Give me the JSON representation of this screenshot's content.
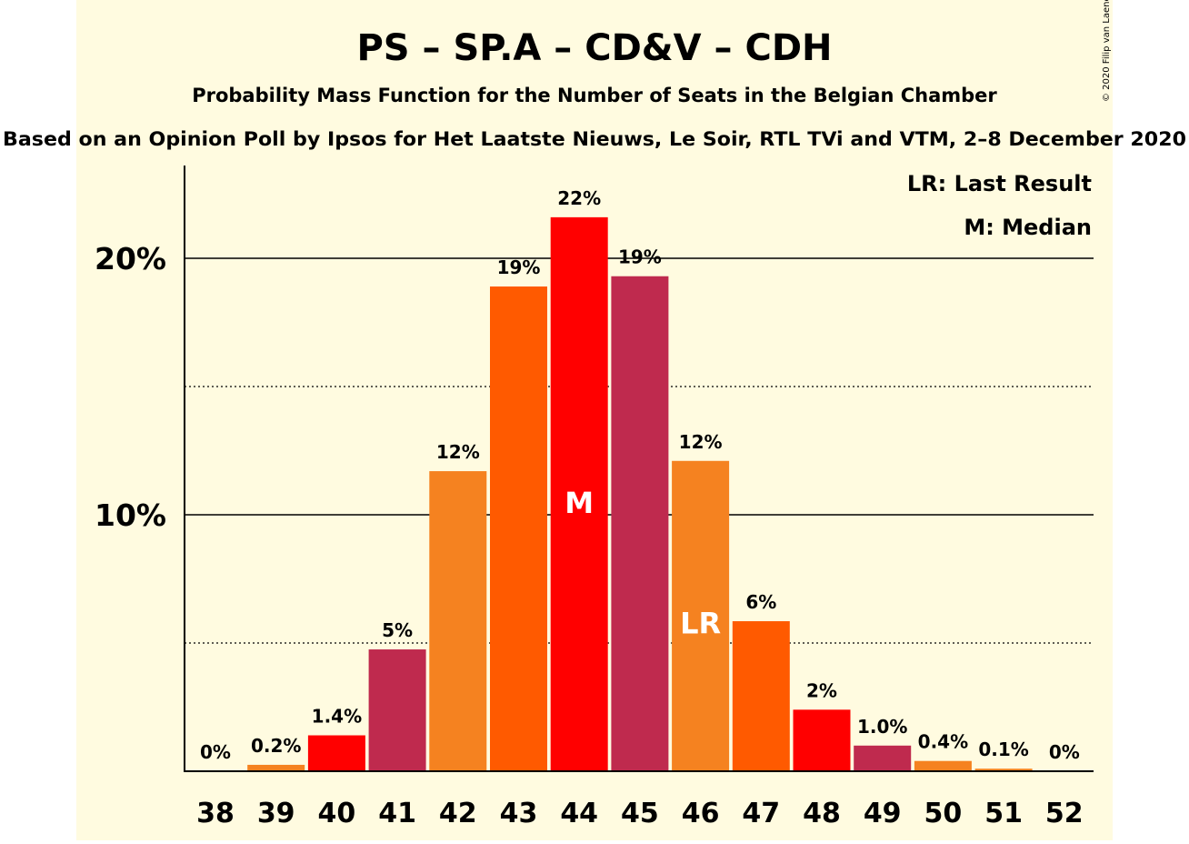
{
  "chart_data": {
    "type": "bar",
    "title": "PS – SP.A – CD&V – CDH",
    "subtitle": "Probability Mass Function for the Number of Seats in the Belgian Chamber",
    "source_line": "Based on an Opinion Poll by Ipsos for Het Laatste Nieuws, Le Soir, RTL TVi and VTM, 2–8 December 2020",
    "copyright": "© 2020 Filip van Laenen",
    "xlabel": "",
    "ylabel": "",
    "ylim": [
      0,
      23.5
    ],
    "y_ticks": [
      {
        "value": 10,
        "label": "10%"
      },
      {
        "value": 20,
        "label": "20%"
      }
    ],
    "minor_gridlines": [
      5,
      15
    ],
    "legend_placement": "top-right",
    "legend": [
      "LR: Last Result",
      "M: Median"
    ],
    "categories": [
      "38",
      "39",
      "40",
      "41",
      "42",
      "43",
      "44",
      "45",
      "46",
      "47",
      "48",
      "49",
      "50",
      "51",
      "52"
    ],
    "values": [
      0,
      0.25,
      1.4,
      4.75,
      11.7,
      18.9,
      21.6,
      19.3,
      12.1,
      5.85,
      2.4,
      1.0,
      0.4,
      0.1,
      0
    ],
    "data_labels": [
      "0%",
      "0.2%",
      "1.4%",
      "5%",
      "12%",
      "19%",
      "22%",
      "19%",
      "12%",
      "6%",
      "2%",
      "1.0%",
      "0.4%",
      "0.1%",
      "0%"
    ],
    "bar_colors": [
      "#F58220",
      "#F58220",
      "#FF0000",
      "#BF2A4E",
      "#F58220",
      "#FF5A00",
      "#FF0000",
      "#BF2A4E",
      "#F58220",
      "#FF5A00",
      "#FF0000",
      "#BF2A4E",
      "#F58220",
      "#F58220",
      "#F58220"
    ],
    "markers": [
      {
        "category": "44",
        "text": "M"
      },
      {
        "category": "46",
        "text": "LR"
      }
    ],
    "background_color": "#FFFBE0",
    "axis_color": "#000000",
    "marker_text_color": "#FFFFFF"
  }
}
